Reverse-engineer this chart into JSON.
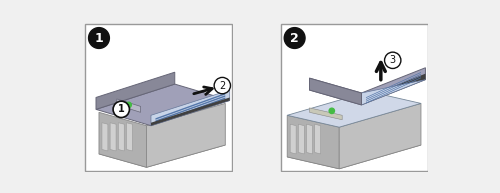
{
  "bg_color": "#f0f0f0",
  "panel_bg": "#ffffff",
  "panel_border": "#999999",
  "cover_color": "#a0a0b8",
  "cover_dark": "#888898",
  "cover_top_strip": "#404040",
  "server_body_color": "#d8d8d8",
  "server_body_dark": "#b0b0b0",
  "server_side_color": "#c0c0c0",
  "chassis_color": "#e0e0e0",
  "chassis_dark": "#b8b8b8",
  "fan_color": "#d0d0d0",
  "pcb_color": "#c8d4e8",
  "pcb_strip1": "#5577aa",
  "pcb_strip2": "#3366bb",
  "arrow_color": "#111111",
  "callout_bg": "#ffffff",
  "callout_border": "#111111",
  "callout_filled_bg": "#111111",
  "callout_filled_text": "#ffffff",
  "num1_label": "1",
  "num2_label": "2",
  "num3_label": "3",
  "step1_label": "1",
  "step2_label": "2",
  "green_dot": "#44bb44",
  "label_color": "#111111"
}
